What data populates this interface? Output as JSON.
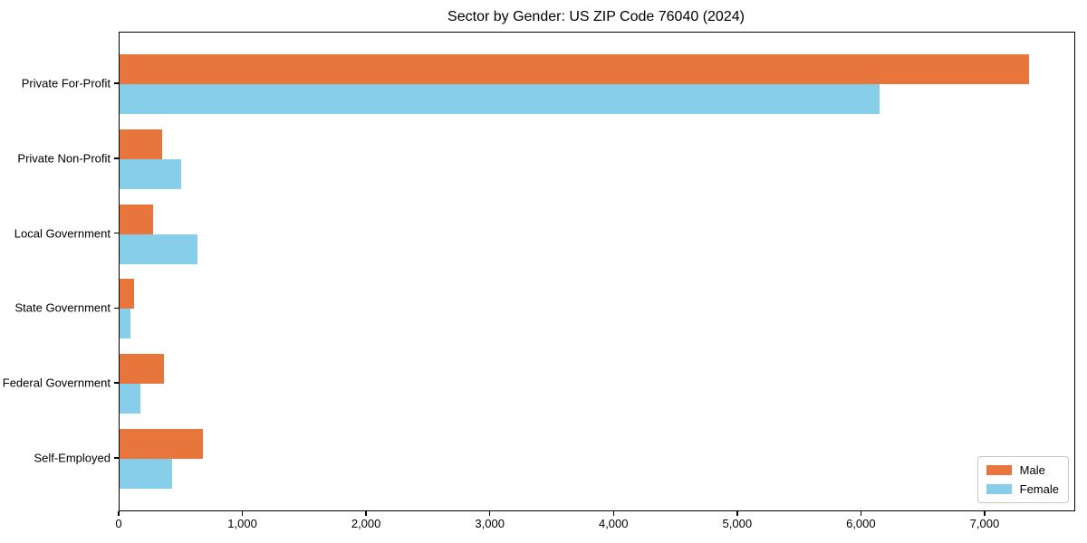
{
  "figure": {
    "title": "Sector by Gender: US ZIP Code 76040 (2024)"
  },
  "chart_data": {
    "type": "bar",
    "orientation": "horizontal",
    "title": "Sector by Gender: US ZIP Code 76040 (2024)",
    "categories": [
      "Private For-Profit",
      "Private Non-Profit",
      "Local Government",
      "State Government",
      "Federal Government",
      "Self-Employed"
    ],
    "series": [
      {
        "name": "Male",
        "color": "#e8763c",
        "values": [
          7350,
          345,
          270,
          115,
          360,
          675
        ]
      },
      {
        "name": "Female",
        "color": "#87ceeb",
        "values": [
          6140,
          500,
          630,
          85,
          170,
          425
        ]
      }
    ],
    "xlabel": "",
    "ylabel": "",
    "xlim": [
      0,
      7718
    ],
    "x_ticks": [
      0,
      1000,
      2000,
      3000,
      4000,
      5000,
      6000,
      7000
    ],
    "x_tick_labels": [
      "0",
      "1,000",
      "2,000",
      "3,000",
      "4,000",
      "5,000",
      "6,000",
      "7,000"
    ],
    "grid": false,
    "legend": {
      "position": "lower right",
      "entries": [
        "Male",
        "Female"
      ]
    }
  },
  "colors": {
    "male": "#e8763c",
    "female": "#87ceeb",
    "spine": "#000000",
    "text": "#000000",
    "legend_border": "#c8c8c8",
    "background": "#ffffff"
  }
}
